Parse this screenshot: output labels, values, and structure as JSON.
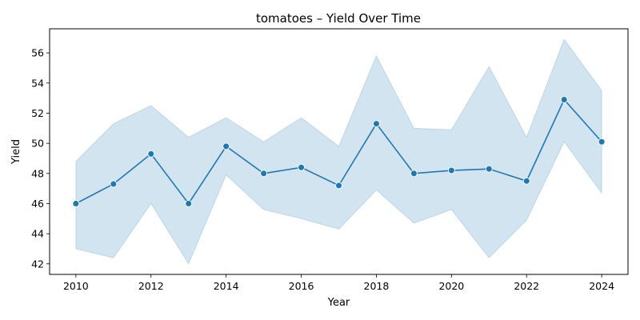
{
  "chart_data": {
    "type": "line",
    "title": "tomatoes – Yield Over Time",
    "xlabel": "Year",
    "ylabel": "Yield",
    "xlim": [
      2009.3,
      2024.7
    ],
    "ylim": [
      41.3,
      57.6
    ],
    "xticks": [
      2010,
      2012,
      2014,
      2016,
      2018,
      2020,
      2022,
      2024
    ],
    "yticks": [
      42,
      44,
      46,
      48,
      50,
      52,
      54,
      56
    ],
    "grid": false,
    "legend": "none",
    "line_color": "#1f77b4",
    "band_color": "#1f77b4",
    "x": [
      2010,
      2011,
      2012,
      2013,
      2014,
      2015,
      2016,
      2017,
      2018,
      2019,
      2020,
      2021,
      2022,
      2023,
      2024
    ],
    "series": [
      {
        "values": [
          46.0,
          47.3,
          49.3,
          46.0,
          49.8,
          48.0,
          48.4,
          47.2,
          51.3,
          48.0,
          48.2,
          48.3,
          47.5,
          52.9,
          50.1
        ],
        "band_low": [
          43.0,
          42.4,
          46.0,
          42.0,
          47.9,
          45.6,
          45.0,
          44.3,
          46.9,
          44.7,
          45.6,
          42.4,
          44.9,
          50.1,
          46.7
        ],
        "band_high": [
          48.8,
          51.3,
          52.5,
          50.4,
          51.7,
          50.1,
          51.7,
          49.8,
          55.8,
          51.0,
          50.9,
          55.1,
          50.4,
          56.9,
          53.5
        ]
      }
    ]
  }
}
